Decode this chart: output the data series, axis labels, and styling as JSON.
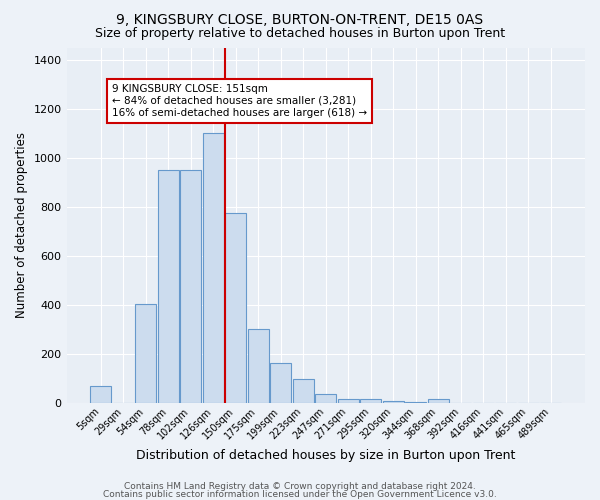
{
  "title1": "9, KINGSBURY CLOSE, BURTON-ON-TRENT, DE15 0AS",
  "title2": "Size of property relative to detached houses in Burton upon Trent",
  "xlabel": "Distribution of detached houses by size in Burton upon Trent",
  "ylabel": "Number of detached properties",
  "categories": [
    "5sqm",
    "29sqm",
    "54sqm",
    "78sqm",
    "102sqm",
    "126sqm",
    "150sqm",
    "175sqm",
    "199sqm",
    "223sqm",
    "247sqm",
    "271sqm",
    "295sqm",
    "320sqm",
    "344sqm",
    "368sqm",
    "392sqm",
    "416sqm",
    "441sqm",
    "465sqm",
    "489sqm"
  ],
  "values": [
    70,
    0,
    405,
    950,
    950,
    1100,
    775,
    305,
    165,
    100,
    38,
    18,
    18,
    12,
    8,
    18,
    0,
    0,
    0,
    0,
    0
  ],
  "bar_color": "#ccdcee",
  "bar_edge_color": "#6699cc",
  "property_line_index": 6,
  "annotation_text": "9 KINGSBURY CLOSE: 151sqm\n← 84% of detached houses are smaller (3,281)\n16% of semi-detached houses are larger (618) →",
  "footnote1": "Contains HM Land Registry data © Crown copyright and database right 2024.",
  "footnote2": "Contains public sector information licensed under the Open Government Licence v3.0.",
  "ylim": [
    0,
    1450
  ],
  "background_color": "#e8eef5",
  "grid_color": "#ffffff",
  "line_color": "#cc0000",
  "title1_fontsize": 10,
  "title2_fontsize": 9,
  "xlabel_fontsize": 9,
  "ylabel_fontsize": 8.5,
  "footnote_fontsize": 6.5
}
